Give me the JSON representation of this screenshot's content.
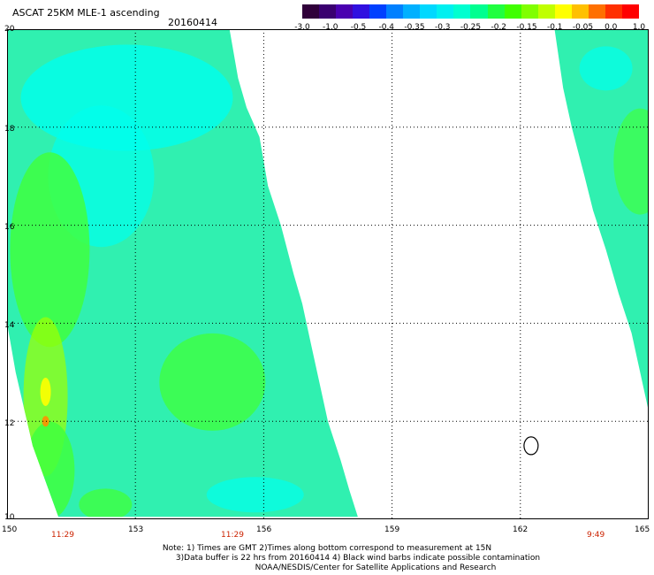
{
  "header": {
    "title": "ASCAT 25KM MLE-1 ascending",
    "date": "20160414"
  },
  "colorbar": {
    "colors": [
      "#30003a",
      "#3a0070",
      "#4a00b0",
      "#3010e0",
      "#0040ff",
      "#0080ff",
      "#00b0ff",
      "#00d8ff",
      "#00f0f0",
      "#00ffd0",
      "#00ff90",
      "#20ff40",
      "#40ff00",
      "#80ff00",
      "#c0ff00",
      "#ffff00",
      "#ffc000",
      "#ff7000",
      "#ff3000",
      "#ff0000"
    ],
    "labels": [
      "-3.0",
      "-1.0",
      "-0.5",
      "-0.4",
      "-0.35",
      "-0.3",
      "-0.25",
      "-0.2",
      "-0.15",
      "-0.1",
      "-0.05",
      "0.0",
      "1.0"
    ]
  },
  "map": {
    "lon_range": [
      150,
      165
    ],
    "lat_range": [
      10,
      20
    ],
    "lon_ticks": [
      "150",
      "153",
      "156",
      "159",
      "162",
      "165"
    ],
    "lat_ticks": [
      "20",
      "18",
      "16",
      "14",
      "12",
      "10"
    ],
    "grid_lons": [
      153,
      156,
      159,
      162
    ],
    "grid_lats": [
      12,
      14,
      16,
      18
    ],
    "swath_colors": {
      "main": "#30f0b0",
      "cyan": "#00ffee",
      "green": "#40ff40",
      "lime": "#a0ff00",
      "yellow": "#ffff00",
      "orange": "#ff9000"
    },
    "swath_a": [
      [
        150.0,
        20.0
      ],
      [
        155.2,
        20.0
      ],
      [
        155.4,
        19.0
      ],
      [
        155.6,
        18.4
      ],
      [
        155.9,
        17.8
      ],
      [
        156.1,
        16.8
      ],
      [
        156.4,
        16.0
      ],
      [
        156.7,
        15.0
      ],
      [
        156.9,
        14.4
      ],
      [
        157.1,
        13.6
      ],
      [
        157.3,
        12.8
      ],
      [
        157.5,
        12.0
      ],
      [
        157.8,
        11.2
      ],
      [
        158.0,
        10.6
      ],
      [
        158.2,
        10.05
      ],
      [
        151.2,
        10.05
      ],
      [
        150.6,
        11.5
      ],
      [
        150.2,
        13.0
      ],
      [
        150.0,
        14.0
      ]
    ],
    "swath_b": [
      [
        162.8,
        20.0
      ],
      [
        165.0,
        20.0
      ],
      [
        165.0,
        12.2
      ],
      [
        164.8,
        13.0
      ],
      [
        164.6,
        13.8
      ],
      [
        164.3,
        14.6
      ],
      [
        164.0,
        15.5
      ],
      [
        163.7,
        16.3
      ],
      [
        163.5,
        17.0
      ],
      [
        163.2,
        18.0
      ],
      [
        163.0,
        18.8
      ]
    ],
    "contour_center": [
      162.25,
      11.5
    ],
    "times": [
      {
        "label": "11:29",
        "lon": 151.2
      },
      {
        "label": "11:29",
        "lon": 155.9
      },
      {
        "label": "9:49",
        "lon": 164.0
      }
    ]
  },
  "notes": {
    "line1": "Note: 1) Times are GMT 2)Times along bottom correspond to measurement at 15N",
    "line2": "3)Data buffer is 22 hrs from 20160414 4) Black wind barbs indicate possible contamination",
    "line3": "NOAA/NESDIS/Center for Satellite Applications and Research"
  }
}
